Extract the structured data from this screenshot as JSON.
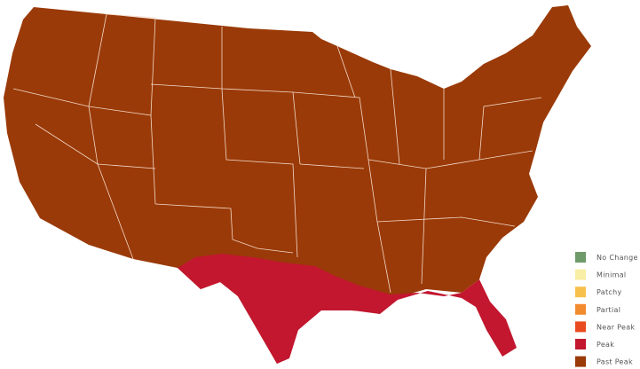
{
  "legend": {
    "items": [
      {
        "label": "No Change",
        "color": "#6f9b6a"
      },
      {
        "label": "Minimal",
        "color": "#f8eea5"
      },
      {
        "label": "Patchy",
        "color": "#f7c04c"
      },
      {
        "label": "Partial",
        "color": "#f28b2e"
      },
      {
        "label": "Near Peak",
        "color": "#ea4a1f"
      },
      {
        "label": "Peak",
        "color": "#c2172f"
      },
      {
        "label": "Past Peak",
        "color": "#9a3a08"
      }
    ]
  }
}
